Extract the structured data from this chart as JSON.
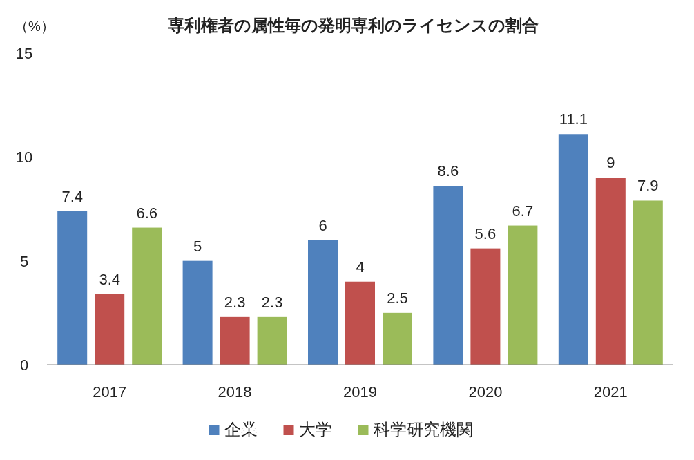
{
  "chart_data": {
    "type": "bar",
    "title": "専利権者の属性毎の発明専利のライセンスの割合",
    "ylabel": "（%）",
    "categories": [
      "2017",
      "2018",
      "2019",
      "2020",
      "2021"
    ],
    "series": [
      {
        "name": "企業",
        "color": "#4f81bd",
        "values": [
          7.4,
          5,
          6,
          8.6,
          11.1
        ]
      },
      {
        "name": "大学",
        "color": "#c0504d",
        "values": [
          3.4,
          2.3,
          4,
          5.6,
          9
        ]
      },
      {
        "name": "科学研究機関",
        "color": "#9bbb59",
        "values": [
          6.6,
          2.3,
          2.5,
          6.7,
          7.9
        ]
      }
    ],
    "ylim": [
      0,
      15
    ],
    "yticks": [
      0,
      5,
      10,
      15
    ],
    "grid": false,
    "legend": "bottom",
    "data_labels": true
  }
}
